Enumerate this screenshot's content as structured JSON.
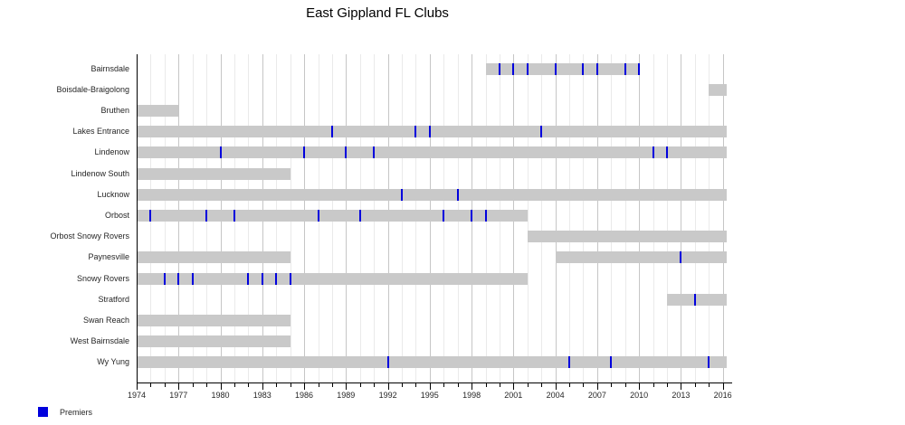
{
  "page": {
    "background": "#ffffff"
  },
  "chart_data": {
    "type": "gantt-timeline",
    "title": "East Gippland FL Clubs",
    "legend": [
      {
        "label": "Premiers",
        "color": "#0000dd"
      }
    ],
    "bar_color": "#c9c9c9",
    "premier_color": "#0000dd",
    "grid": {
      "minor_color": "#eaeaea",
      "major_color": "#c6c6c6"
    },
    "x_axis": {
      "min": 1974,
      "max": 2016,
      "major_tick_step": 3,
      "minor_tick_step": 1,
      "tick_labels": [
        "1974",
        "1977",
        "1980",
        "1983",
        "1986",
        "1989",
        "1992",
        "1995",
        "1998",
        "2001",
        "2004",
        "2007",
        "2010",
        "2013",
        "2016"
      ]
    },
    "clubs": [
      {
        "name": "Bairnsdale",
        "segments": [
          [
            1999,
            2010
          ]
        ],
        "premiers": [
          2000,
          2001,
          2002,
          2004,
          2006,
          2007,
          2009,
          2010
        ]
      },
      {
        "name": "Boisdale-Braigolong",
        "segments": [
          [
            2015,
            2016
          ]
        ],
        "premiers": []
      },
      {
        "name": "Bruthen",
        "segments": [
          [
            1974,
            1977
          ]
        ],
        "premiers": []
      },
      {
        "name": "Lakes Entrance",
        "segments": [
          [
            1974,
            2016
          ]
        ],
        "premiers": [
          1988,
          1994,
          1995,
          2003
        ]
      },
      {
        "name": "Lindenow",
        "segments": [
          [
            1974,
            2016
          ]
        ],
        "premiers": [
          1980,
          1986,
          1989,
          1991,
          2011,
          2012
        ]
      },
      {
        "name": "Lindenow South",
        "segments": [
          [
            1974,
            1985
          ]
        ],
        "premiers": []
      },
      {
        "name": "Lucknow",
        "segments": [
          [
            1974,
            2016
          ]
        ],
        "premiers": [
          1993,
          1997
        ]
      },
      {
        "name": "Orbost",
        "segments": [
          [
            1974,
            2002
          ]
        ],
        "premiers": [
          1975,
          1979,
          1981,
          1987,
          1990,
          1996,
          1998,
          1999
        ]
      },
      {
        "name": "Orbost Snowy Rovers",
        "segments": [
          [
            2002,
            2016
          ]
        ],
        "premiers": []
      },
      {
        "name": "Paynesville",
        "segments": [
          [
            1974,
            1985
          ],
          [
            2004,
            2016
          ]
        ],
        "premiers": [
          2013
        ]
      },
      {
        "name": "Snowy Rovers",
        "segments": [
          [
            1974,
            2002
          ]
        ],
        "premiers": [
          1976,
          1977,
          1978,
          1982,
          1983,
          1984,
          1985
        ]
      },
      {
        "name": "Stratford",
        "segments": [
          [
            2012,
            2016
          ]
        ],
        "premiers": [
          2014
        ]
      },
      {
        "name": "Swan Reach",
        "segments": [
          [
            1974,
            1985
          ]
        ],
        "premiers": []
      },
      {
        "name": "West Bairnsdale",
        "segments": [
          [
            1974,
            1985
          ]
        ],
        "premiers": []
      },
      {
        "name": "Wy Yung",
        "segments": [
          [
            1974,
            2016
          ]
        ],
        "premiers": [
          1992,
          2005,
          2008,
          2015
        ]
      }
    ]
  }
}
